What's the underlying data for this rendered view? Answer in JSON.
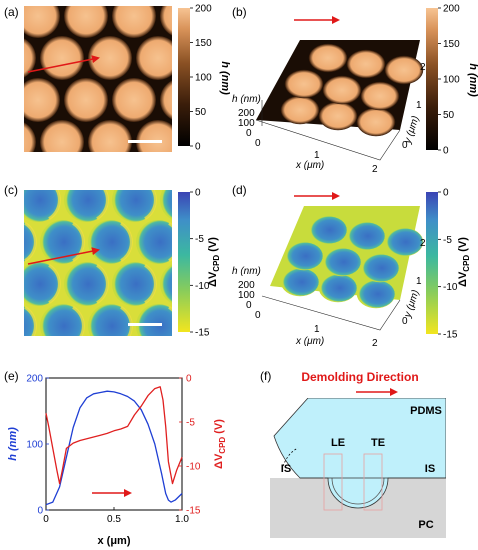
{
  "panels": {
    "a": "(a)",
    "b": "(b)",
    "c": "(c)",
    "d": "(d)",
    "e": "(e)",
    "f": "(f)"
  },
  "colorbar_h": {
    "ticks": [
      "200",
      "150",
      "100",
      "50",
      "0"
    ],
    "title": "h (nm)",
    "range": [
      0,
      200
    ],
    "gradient": [
      "#000000",
      "#3a1d0a",
      "#8a5124",
      "#d9935a",
      "#f7c493"
    ]
  },
  "colorbar_v": {
    "ticks": [
      "0",
      "-5",
      "-10",
      "-15"
    ],
    "title": "ΔV",
    "title_sub": "CPD",
    "title_unit": " (V)",
    "range": [
      -15,
      0
    ],
    "gradient": [
      "#f2e51f",
      "#87cc5c",
      "#3cb8a0",
      "#3f8fc8",
      "#3b44b4"
    ]
  },
  "surface3d": {
    "h_label": "h (nm)",
    "h_ticks": [
      "200",
      "100",
      "0"
    ],
    "x_label": "x (μm)",
    "x_ticks": [
      "0",
      "1",
      "2"
    ],
    "y_label": "y (μm)",
    "y_ticks": [
      "0",
      "1",
      "2"
    ]
  },
  "chart_data": {
    "type": "line",
    "xlabel": "x (μm)",
    "x_ticks": [
      "0",
      "0.5",
      "1.0"
    ],
    "xlim": [
      0,
      1.0
    ],
    "ylabel_left": "h (nm)",
    "ylim_left": [
      0,
      200
    ],
    "left_ticks": [
      "0",
      "100",
      "200"
    ],
    "ylabel_right": "ΔV",
    "ylabel_right_sub": "CPD",
    "ylabel_right_unit": " (V)",
    "ylim_right": [
      -15,
      0
    ],
    "right_ticks": [
      "0",
      "-5",
      "-10",
      "-15"
    ],
    "series": [
      {
        "axis": "left",
        "color": "#1f3fd4",
        "x": [
          0.0,
          0.05,
          0.1,
          0.15,
          0.2,
          0.25,
          0.3,
          0.35,
          0.4,
          0.45,
          0.5,
          0.55,
          0.6,
          0.65,
          0.7,
          0.75,
          0.8,
          0.85,
          0.88,
          0.9,
          0.92,
          0.95,
          1.0
        ],
        "y": [
          8,
          12,
          35,
          80,
          125,
          155,
          170,
          176,
          178,
          180,
          179,
          176,
          172,
          165,
          152,
          130,
          100,
          55,
          25,
          15,
          12,
          15,
          25
        ]
      },
      {
        "axis": "right",
        "color": "#e02020",
        "x": [
          0.0,
          0.02,
          0.05,
          0.08,
          0.1,
          0.12,
          0.15,
          0.2,
          0.25,
          0.3,
          0.35,
          0.4,
          0.45,
          0.5,
          0.55,
          0.6,
          0.65,
          0.7,
          0.75,
          0.8,
          0.84,
          0.86,
          0.88,
          0.9,
          0.93,
          0.96,
          1.0
        ],
        "y": [
          -4.0,
          -5.5,
          -8.0,
          -10.5,
          -12.0,
          -10.5,
          -8.0,
          -7.4,
          -7.1,
          -6.9,
          -6.7,
          -6.5,
          -6.3,
          -6.0,
          -5.8,
          -5.5,
          -4.2,
          -3.2,
          -2.0,
          -1.2,
          -1.0,
          -2.5,
          -5.5,
          -9.5,
          -12.0,
          -10.5,
          -9.0
        ]
      }
    ]
  },
  "schematic": {
    "title": "Demolding Direction",
    "pdms": "PDMS",
    "le": "LE",
    "te": "TE",
    "is_left": "IS",
    "is_right": "IS",
    "pc": "PC"
  },
  "colors": {
    "arrow": "#e01818",
    "pdms": "#bff0fb",
    "pc": "#d6d6d6",
    "blue_axis": "#1f3fd4",
    "red_axis": "#e02020"
  }
}
